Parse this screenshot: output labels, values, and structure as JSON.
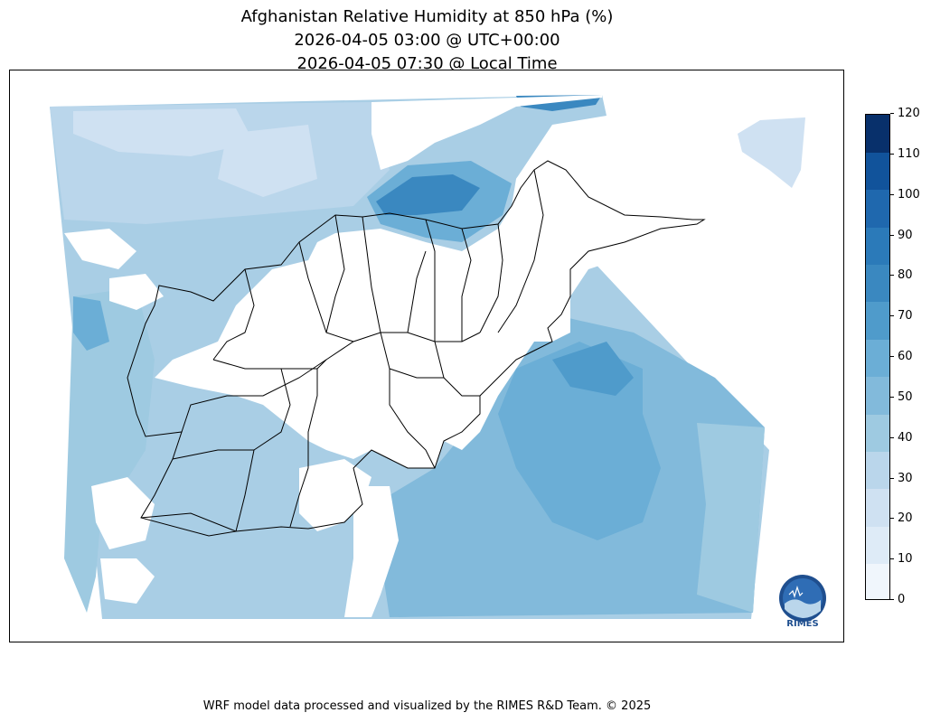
{
  "title": {
    "line1": "Afghanistan Relative Humidity at 850 hPa (%)",
    "line2": "2026-04-05 03:00 @ UTC+00:00",
    "line3": "2026-04-05 07:30 @ Local Time"
  },
  "colorbar": {
    "min": 0,
    "max": 120,
    "ticks": [
      "0",
      "10",
      "20",
      "30",
      "40",
      "50",
      "60",
      "70",
      "80",
      "90",
      "100",
      "110",
      "120"
    ],
    "colors": [
      "#f0f6fc",
      "#deebf7",
      "#cfe1f2",
      "#bad6eb",
      "#9ecae1",
      "#82badb",
      "#6baed6",
      "#4f9bcb",
      "#3a88c0",
      "#2b7ab9",
      "#1f68ae",
      "#11539b",
      "#08306b"
    ]
  },
  "logo": {
    "text": "RIMES"
  },
  "footer": "WRF model data processed and visualized by the RIMES R&D Team. © 2025",
  "colors": {
    "boundary": "#000000",
    "background": "#ffffff"
  }
}
